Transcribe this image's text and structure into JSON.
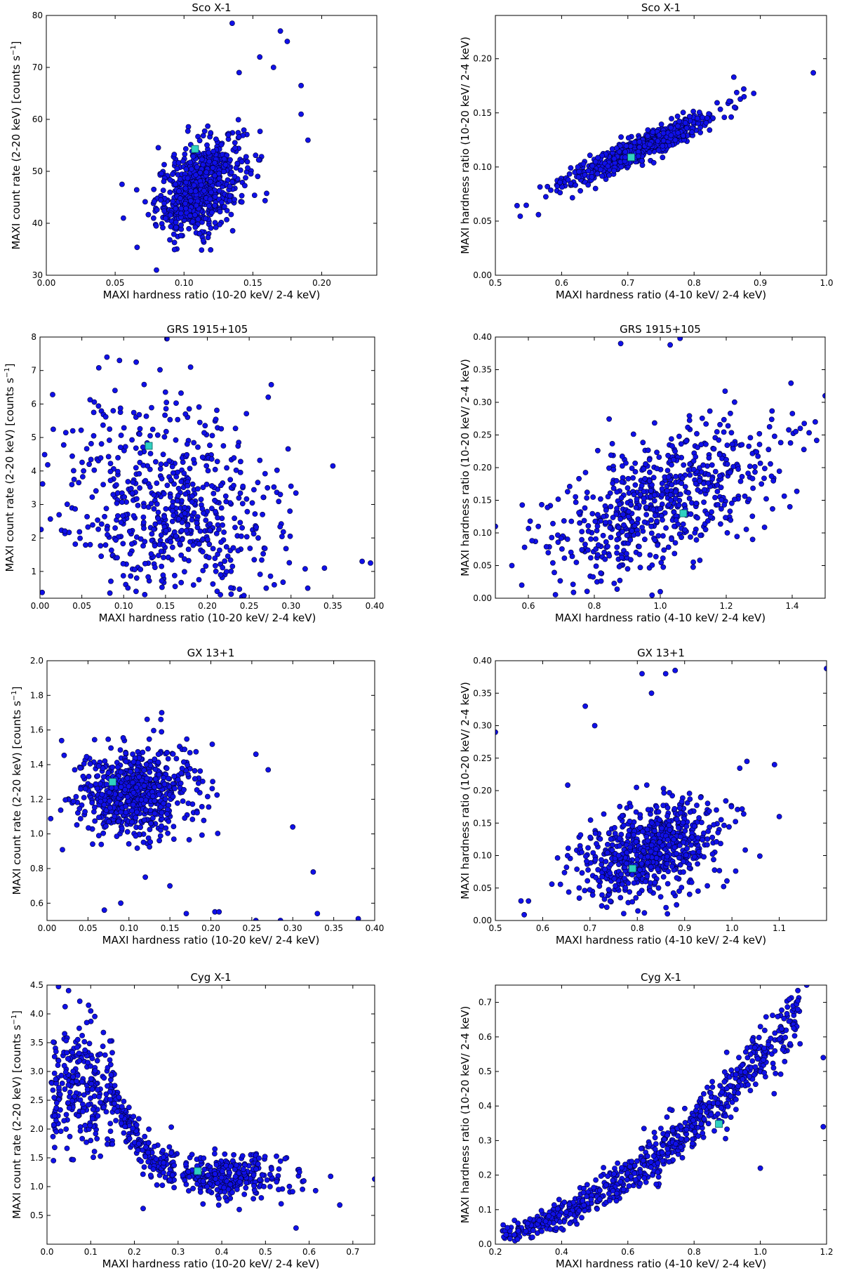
{
  "chart_data": [
    {
      "type": "scatter",
      "title": "Sco X-1",
      "xlabel": "MAXI hardness ratio (10-20 keV/ 2-4 keV)",
      "ylabel": "MAXI count rate (2-20 keV) [counts s",
      "ylabel_sup": "−1",
      "ylabel_end": "]",
      "xlim": [
        0.0,
        0.24
      ],
      "ylim": [
        30,
        80
      ],
      "xticks": [
        "0.00",
        "0.05",
        "0.10",
        "0.15",
        "0.20"
      ],
      "yticks": [
        "30",
        "40",
        "50",
        "60",
        "70",
        "80"
      ],
      "points": {
        "cx": 0.112,
        "cy": 47,
        "sx": 0.016,
        "sy": 4.8,
        "rho": 0.45,
        "n": 700,
        "outliers": [
          [
            0.055,
            47.5
          ],
          [
            0.08,
            31
          ],
          [
            0.135,
            78.5
          ],
          [
            0.17,
            77
          ],
          [
            0.175,
            75
          ],
          [
            0.185,
            66.5
          ],
          [
            0.19,
            56
          ],
          [
            0.185,
            61
          ],
          [
            0.155,
            72
          ],
          [
            0.14,
            69
          ],
          [
            0.165,
            70
          ]
        ]
      },
      "highlight": {
        "x": 0.108,
        "y": 54.3
      }
    },
    {
      "type": "scatter",
      "title": "Sco X-1",
      "xlabel": "MAXI hardness ratio (4-10 keV/ 2-4 keV)",
      "ylabel": "MAXI hardness ratio (10-20 keV/ 2-4 keV)",
      "xlim": [
        0.5,
        1.0
      ],
      "ylim": [
        0.0,
        0.24
      ],
      "xticks": [
        "0.5",
        "0.6",
        "0.7",
        "0.8",
        "0.9",
        "1.0"
      ],
      "yticks": [
        "0.00",
        "0.05",
        "0.10",
        "0.15",
        "0.20"
      ],
      "points": {
        "cx": 0.715,
        "cy": 0.116,
        "sx": 0.055,
        "sy": 0.016,
        "rho": 0.93,
        "n": 700,
        "outliers": [
          [
            0.565,
            0.056
          ],
          [
            0.98,
            0.187
          ],
          [
            0.86,
            0.183
          ],
          [
            0.875,
            0.172
          ],
          [
            0.89,
            0.168
          ]
        ]
      },
      "highlight": {
        "x": 0.705,
        "y": 0.109
      }
    },
    {
      "type": "scatter",
      "title": "GRS 1915+105",
      "xlabel": "MAXI hardness ratio (10-20 keV/ 2-4 keV)",
      "ylabel": "MAXI count rate (2-20 keV) [counts s",
      "ylabel_sup": "−1",
      "ylabel_end": "]",
      "xlim": [
        0.0,
        0.4
      ],
      "ylim": [
        0.2,
        8.0
      ],
      "xticks": [
        "0.00",
        "0.05",
        "0.10",
        "0.15",
        "0.20",
        "0.25",
        "0.30",
        "0.35",
        "0.40"
      ],
      "yticks": [
        "1",
        "2",
        "3",
        "4",
        "5",
        "6",
        "7",
        "8"
      ],
      "points": {
        "cx": 0.155,
        "cy": 2.8,
        "sx": 0.065,
        "sy": 1.6,
        "rho": -0.1,
        "n": 650,
        "outliers": [
          [
            0.08,
            7.4
          ],
          [
            0.115,
            7.25
          ],
          [
            0.095,
            7.3
          ],
          [
            0.18,
            7.1
          ],
          [
            0.35,
            4.15
          ],
          [
            0.385,
            1.3
          ],
          [
            0.395,
            1.25
          ],
          [
            0.32,
            0.5
          ],
          [
            0.34,
            1.1
          ],
          [
            0.28,
            0.6
          ]
        ]
      },
      "highlight": {
        "x": 0.13,
        "y": 4.75
      }
    },
    {
      "type": "scatter",
      "title": "GRS 1915+105",
      "xlabel": "MAXI hardness ratio (4-10 keV/ 2-4 keV)",
      "ylabel": "MAXI hardness ratio (10-20 keV/ 2-4 keV)",
      "xlim": [
        0.5,
        1.5
      ],
      "ylim": [
        0.0,
        0.4
      ],
      "xticks": [
        "0.6",
        "0.8",
        "1.0",
        "1.2",
        "1.4"
      ],
      "yticks": [
        "0.00",
        "0.05",
        "0.10",
        "0.15",
        "0.20",
        "0.25",
        "0.30",
        "0.35",
        "0.40"
      ],
      "points": {
        "cx": 1.0,
        "cy": 0.145,
        "sx": 0.17,
        "sy": 0.06,
        "rho": 0.55,
        "n": 650,
        "outliers": [
          [
            0.5,
            0.11
          ],
          [
            0.55,
            0.05
          ],
          [
            0.58,
            0.02
          ],
          [
            1.5,
            0.31
          ],
          [
            1.47,
            0.27
          ],
          [
            1.06,
            0.398
          ],
          [
            0.88,
            0.39
          ],
          [
            1.03,
            0.388
          ],
          [
            1.28,
            0.09
          ],
          [
            1.0,
            0.01
          ]
        ]
      },
      "highlight": {
        "x": 1.07,
        "y": 0.13
      }
    },
    {
      "type": "scatter",
      "title": "GX 13+1",
      "xlabel": "MAXI hardness ratio (10-20 keV/ 2-4 keV)",
      "ylabel": "MAXI count rate (2-20 keV) [counts s",
      "ylabel_sup": "−1",
      "ylabel_end": "]",
      "xlim": [
        0.0,
        0.4
      ],
      "ylim": [
        0.5,
        2.0
      ],
      "xticks": [
        "0.00",
        "0.05",
        "0.10",
        "0.15",
        "0.20",
        "0.25",
        "0.30",
        "0.35",
        "0.40"
      ],
      "yticks": [
        "0.6",
        "0.8",
        "1.0",
        "1.2",
        "1.4",
        "1.6",
        "1.8",
        "2.0"
      ],
      "points": {
        "cx": 0.105,
        "cy": 1.24,
        "sx": 0.035,
        "sy": 0.13,
        "rho": 0.1,
        "n": 700,
        "outliers": [
          [
            0.07,
            0.56
          ],
          [
            0.09,
            0.6
          ],
          [
            0.12,
            0.75
          ],
          [
            0.15,
            0.7
          ],
          [
            0.205,
            0.55
          ],
          [
            0.21,
            0.55
          ],
          [
            0.255,
            1.46
          ],
          [
            0.27,
            1.37
          ],
          [
            0.3,
            1.04
          ],
          [
            0.325,
            0.78
          ],
          [
            0.33,
            0.54
          ],
          [
            0.38,
            0.51
          ],
          [
            0.17,
            0.54
          ],
          [
            0.255,
            0.5
          ],
          [
            0.285,
            0.5
          ],
          [
            0.14,
            1.7
          ]
        ]
      },
      "highlight": {
        "x": 0.08,
        "y": 1.3
      }
    },
    {
      "type": "scatter",
      "title": "GX 13+1",
      "xlabel": "MAXI hardness ratio (4-10 keV/ 2-4 keV)",
      "ylabel": "MAXI hardness ratio (10-20 keV/ 2-4 keV)",
      "xlim": [
        0.5,
        1.2
      ],
      "ylim": [
        0.0,
        0.4
      ],
      "xticks": [
        "0.5",
        "0.6",
        "0.7",
        "0.8",
        "0.9",
        "1.0",
        "1.1"
      ],
      "yticks": [
        "0.00",
        "0.05",
        "0.10",
        "0.15",
        "0.20",
        "0.25",
        "0.30",
        "0.35",
        "0.40"
      ],
      "points": {
        "cx": 0.82,
        "cy": 0.11,
        "sx": 0.075,
        "sy": 0.038,
        "rho": 0.35,
        "n": 700,
        "outliers": [
          [
            0.5,
            0.29
          ],
          [
            0.69,
            0.33
          ],
          [
            0.71,
            0.3
          ],
          [
            0.81,
            0.38
          ],
          [
            0.83,
            0.35
          ],
          [
            0.86,
            0.38
          ],
          [
            0.88,
            0.385
          ],
          [
            1.2,
            0.388
          ],
          [
            1.09,
            0.24
          ],
          [
            0.57,
            0.03
          ],
          [
            1.1,
            0.16
          ]
        ]
      },
      "highlight": {
        "x": 0.79,
        "y": 0.08
      }
    },
    {
      "type": "scatter",
      "title": "Cyg X-1",
      "xlabel": "MAXI hardness ratio (10-20 keV/ 2-4 keV)",
      "ylabel": "MAXI count rate (2-20 keV) [counts s",
      "ylabel_sup": "−1",
      "ylabel_end": "]",
      "xlim": [
        0.0,
        0.75
      ],
      "ylim": [
        0.0,
        4.5
      ],
      "xticks": [
        "0.0",
        "0.1",
        "0.2",
        "0.3",
        "0.4",
        "0.5",
        "0.6",
        "0.7"
      ],
      "yticks": [
        "0.5",
        "1.0",
        "1.5",
        "2.0",
        "2.5",
        "3.0",
        "3.5",
        "4.0",
        "4.5"
      ],
      "points": {
        "mode": "decay",
        "n": 750,
        "outliers": [
          [
            0.075,
            4.22
          ],
          [
            0.095,
            4.15
          ],
          [
            0.1,
            4.05
          ],
          [
            0.57,
            0.28
          ],
          [
            0.67,
            0.68
          ],
          [
            0.75,
            1.13
          ],
          [
            0.22,
            0.62
          ]
        ]
      },
      "highlight": {
        "x": 0.345,
        "y": 1.27
      }
    },
    {
      "type": "scatter",
      "title": "Cyg X-1",
      "xlabel": "MAXI hardness ratio (4-10 keV/ 2-4 keV)",
      "ylabel": "MAXI hardness ratio (10-20 keV/ 2-4 keV)",
      "xlim": [
        0.2,
        1.2
      ],
      "ylim": [
        0.0,
        0.75
      ],
      "xticks": [
        "0.2",
        "0.4",
        "0.6",
        "0.8",
        "1.0",
        "1.2"
      ],
      "yticks": [
        "0.0",
        "0.1",
        "0.2",
        "0.3",
        "0.4",
        "0.5",
        "0.6",
        "0.7"
      ],
      "points": {
        "mode": "ramp",
        "n": 750,
        "outliers": [
          [
            1.14,
            0.75
          ],
          [
            1.19,
            0.54
          ],
          [
            1.19,
            0.34
          ],
          [
            1.0,
            0.22
          ],
          [
            1.12,
            0.58
          ],
          [
            1.09,
            0.58
          ]
        ]
      },
      "highlight": {
        "x": 0.875,
        "y": 0.348
      }
    }
  ]
}
